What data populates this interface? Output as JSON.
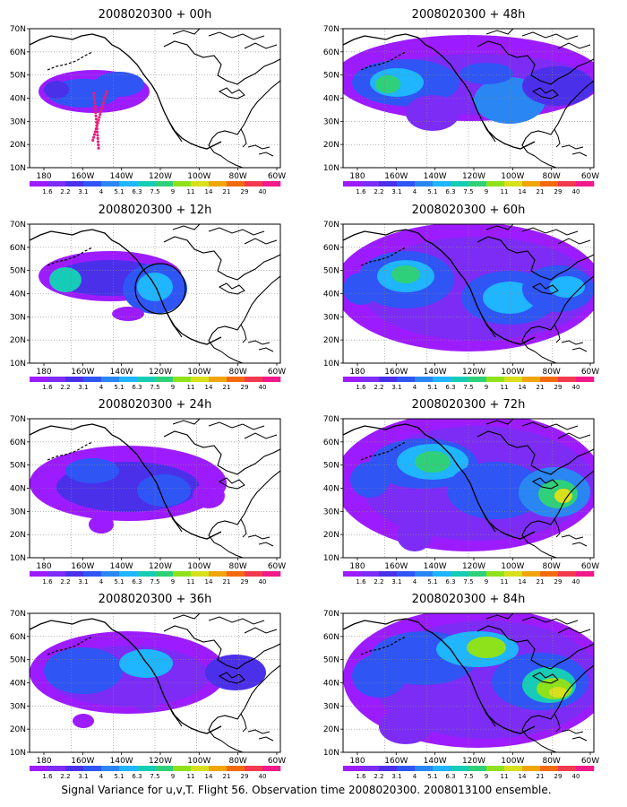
{
  "footer": "Signal Variance for u,v,T. Flight 56. Observation time 2008020300. 2008013100 ensemble.",
  "axes": {
    "y_ticks": [
      "10N",
      "20N",
      "30N",
      "40N",
      "50N",
      "60N",
      "70N"
    ],
    "x_ticks": [
      "180",
      "160W",
      "140W",
      "120W",
      "100W",
      "80W",
      "60W"
    ]
  },
  "colorbar": {
    "labels": [
      "1.6",
      "2.2",
      "3.1",
      "4",
      "5.1",
      "6.3",
      "7.5",
      "9",
      "11",
      "14",
      "21",
      "29",
      "40"
    ],
    "colors": [
      "#9d1cff",
      "#7c2cf5",
      "#4b30ea",
      "#2f55f5",
      "#2a86f2",
      "#1fb5ff",
      "#16ccb6",
      "#2fd07a",
      "#8ee21c",
      "#d7e01b",
      "#f0a50a",
      "#f36a0e",
      "#f23a4e",
      "#f01a8a"
    ]
  },
  "panels": [
    {
      "title": "2008020300 + 00h"
    },
    {
      "title": "2008020300 + 48h"
    },
    {
      "title": "2008020300 + 12h"
    },
    {
      "title": "2008020300 + 60h"
    },
    {
      "title": "2008020300 + 24h"
    },
    {
      "title": "2008020300 + 72h"
    },
    {
      "title": "2008020300 + 36h"
    },
    {
      "title": "2008020300 + 84h"
    }
  ]
}
